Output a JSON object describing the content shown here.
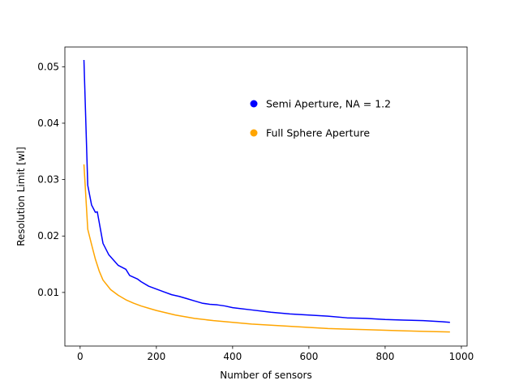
{
  "chart_data": {
    "type": "line",
    "xlabel": "Number of sensors",
    "ylabel": "Resolution Limit [wl]",
    "xlim": [
      -40,
      1015
    ],
    "ylim": [
      0.0005,
      0.0535
    ],
    "xticks": [
      0,
      200,
      400,
      600,
      800,
      1000
    ],
    "xtick_labels": [
      "0",
      "200",
      "400",
      "600",
      "800",
      "1000"
    ],
    "yticks": [
      0.01,
      0.02,
      0.03,
      0.04,
      0.05
    ],
    "ytick_labels": [
      "0.01",
      "0.02",
      "0.03",
      "0.04",
      "0.05"
    ],
    "grid": false,
    "legend_position": "upper-right",
    "series": [
      {
        "name": "Semi Aperture, NA = 1.2",
        "color": "#0000ff",
        "x": [
          10,
          20,
          30,
          40,
          45,
          60,
          75,
          100,
          120,
          130,
          140,
          150,
          160,
          180,
          200,
          220,
          240,
          260,
          280,
          300,
          320,
          340,
          360,
          380,
          400,
          450,
          500,
          550,
          600,
          650,
          700,
          750,
          800,
          850,
          900,
          950,
          970
        ],
        "y": [
          0.0512,
          0.029,
          0.0255,
          0.0242,
          0.0243,
          0.0187,
          0.0167,
          0.0148,
          0.0141,
          0.013,
          0.0127,
          0.0124,
          0.0119,
          0.0111,
          0.0106,
          0.0101,
          0.0096,
          0.0093,
          0.0089,
          0.0085,
          0.0081,
          0.0079,
          0.0078,
          0.0076,
          0.0073,
          0.0069,
          0.0065,
          0.0062,
          0.006,
          0.0058,
          0.0055,
          0.0054,
          0.0052,
          0.0051,
          0.005,
          0.0048,
          0.0047
        ]
      },
      {
        "name": "Full Sphere Aperture",
        "color": "#ffa500",
        "x": [
          10,
          20,
          30,
          40,
          50,
          60,
          80,
          100,
          120,
          140,
          160,
          180,
          200,
          250,
          300,
          350,
          400,
          450,
          500,
          550,
          600,
          650,
          700,
          750,
          800,
          850,
          900,
          970
        ],
        "y": [
          0.0327,
          0.0212,
          0.0185,
          0.0159,
          0.0138,
          0.0122,
          0.0105,
          0.0095,
          0.0087,
          0.0081,
          0.0076,
          0.0072,
          0.0068,
          0.006,
          0.0054,
          0.005,
          0.0047,
          0.0044,
          0.0042,
          0.004,
          0.0038,
          0.0036,
          0.0035,
          0.0034,
          0.0033,
          0.0032,
          0.0031,
          0.003
        ]
      }
    ]
  }
}
